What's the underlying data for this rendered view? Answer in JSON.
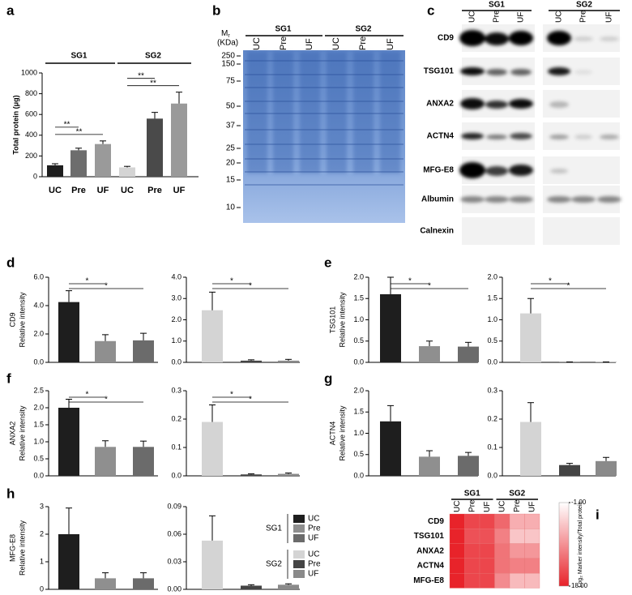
{
  "chart_data": [
    {
      "type": "bar",
      "panel": "a",
      "ylabel": [
        "Total protein (μg)"
      ],
      "ylim": [
        0,
        1000
      ],
      "yticks": [
        0,
        200,
        400,
        600,
        800,
        1000
      ],
      "groups": [
        {
          "name": "SG1",
          "categories": [
            "UC",
            "Pre",
            "UF"
          ],
          "values": [
            110,
            255,
            315
          ],
          "errors": [
            15,
            20,
            30
          ],
          "colors": [
            "#1e1e1e",
            "#6d6d6d",
            "#9a9a9a"
          ],
          "significance": [
            "**",
            "**"
          ]
        },
        {
          "name": "SG2",
          "categories": [
            "UC",
            "Pre",
            "UF"
          ],
          "values": [
            90,
            560,
            705
          ],
          "errors": [
            10,
            60,
            110
          ],
          "colors": [
            "#d4d4d4",
            "#4a4a4a",
            "#9a9a9a"
          ],
          "significance": [
            "**",
            "**"
          ]
        }
      ]
    },
    {
      "type": "bar",
      "panel": "d",
      "ylabel": [
        "CD9",
        "Relative intensity"
      ],
      "categories": [
        null,
        null,
        null
      ],
      "values": [
        4.25,
        1.5,
        1.55
      ],
      "errors": [
        0.8,
        0.45,
        0.5
      ],
      "colors": [
        "#1e1e1e",
        "#8f8f8f",
        "#6b6b6b"
      ],
      "ylim": [
        0,
        6
      ],
      "yticks": [
        {
          "value": 0,
          "label": "0.0"
        },
        {
          "value": 2,
          "label": "2.0"
        },
        {
          "value": 4,
          "label": "4.0"
        },
        {
          "value": 6,
          "label": "6.0"
        }
      ],
      "significance": [
        "*",
        "*"
      ]
    },
    {
      "type": "bar",
      "categories": [
        null,
        null,
        null
      ],
      "values": [
        2.45,
        0.08,
        0.08
      ],
      "errors": [
        0.85,
        0.04,
        0.06
      ],
      "colors": [
        "#d4d4d4",
        "#444444",
        "#8a8a8a"
      ],
      "ylim": [
        0,
        4
      ],
      "yticks": [
        {
          "value": 0,
          "label": "0.0"
        },
        {
          "value": 1,
          "label": "1.0"
        },
        {
          "value": 2,
          "label": "2.0"
        },
        {
          "value": 3,
          "label": "3.0"
        },
        {
          "value": 4,
          "label": "4.0"
        }
      ],
      "significance": [
        "*",
        "*"
      ]
    },
    {
      "type": "bar",
      "panel": "e",
      "ylabel": [
        "TSG101",
        "Relative intensity"
      ],
      "categories": [
        null,
        null,
        null
      ],
      "values": [
        1.6,
        0.38,
        0.37
      ],
      "errors": [
        0.4,
        0.12,
        0.1
      ],
      "colors": [
        "#1e1e1e",
        "#8f8f8f",
        "#6b6b6b"
      ],
      "ylim": [
        0,
        2
      ],
      "yticks": [
        {
          "value": 0,
          "label": "0.0"
        },
        0.5,
        {
          "value": 1,
          "label": "1.0"
        },
        1.5,
        {
          "value": 2,
          "label": "2.0"
        }
      ],
      "significance": [
        "*",
        "*"
      ]
    },
    {
      "type": "bar",
      "categories": [
        null,
        null,
        null
      ],
      "values": [
        1.15,
        0.01,
        0.01
      ],
      "errors": [
        0.35,
        0,
        0
      ],
      "colors": [
        "#d4d4d4",
        "#444444",
        "#8a8a8a"
      ],
      "ylim": [
        0,
        2
      ],
      "yticks": [
        {
          "value": 0,
          "label": "0.0"
        },
        0.5,
        {
          "value": 1,
          "label": "1.0"
        },
        1.5,
        {
          "value": 2,
          "label": "2.0"
        }
      ],
      "significance": [
        "*",
        "*"
      ]
    },
    {
      "type": "bar",
      "panel": "f",
      "ylabel": [
        "ANXA2",
        "Relative intensity"
      ],
      "categories": [
        null,
        null,
        null
      ],
      "values": [
        2.0,
        0.85,
        0.85
      ],
      "errors": [
        0.25,
        0.18,
        0.17
      ],
      "colors": [
        "#1e1e1e",
        "#8f8f8f",
        "#6b6b6b"
      ],
      "ylim": [
        0,
        2.5
      ],
      "yticks": [
        {
          "value": 0,
          "label": "0.0"
        },
        0.5,
        {
          "value": 1,
          "label": "1.0"
        },
        1.5,
        {
          "value": 2,
          "label": "2.0"
        },
        2.5
      ],
      "significance": [
        "*",
        "*"
      ]
    },
    {
      "type": "bar",
      "categories": [
        null,
        null,
        null
      ],
      "values": [
        0.19,
        0.005,
        0.007
      ],
      "errors": [
        0.06,
        0.002,
        0.003
      ],
      "colors": [
        "#d4d4d4",
        "#444444",
        "#8a8a8a"
      ],
      "ylim": [
        0,
        0.3
      ],
      "yticks": [
        {
          "value": 0,
          "label": "0.0"
        },
        0.1,
        0.2,
        0.3
      ],
      "significance": [
        "*",
        "*"
      ]
    },
    {
      "type": "bar",
      "panel": "g",
      "ylabel": [
        "ACTN4",
        "Relative intensity"
      ],
      "categories": [
        null,
        null,
        null
      ],
      "values": [
        1.28,
        0.45,
        0.47
      ],
      "errors": [
        0.37,
        0.14,
        0.08
      ],
      "colors": [
        "#1e1e1e",
        "#8f8f8f",
        "#6b6b6b"
      ],
      "ylim": [
        0,
        2
      ],
      "yticks": [
        {
          "value": 0,
          "label": "0.0"
        },
        0.5,
        {
          "value": 1,
          "label": "1.0"
        },
        1.5,
        {
          "value": 2,
          "label": "2.0"
        }
      ]
    },
    {
      "type": "bar",
      "categories": [
        null,
        null,
        null
      ],
      "values": [
        0.19,
        0.038,
        0.052
      ],
      "errors": [
        0.068,
        0.006,
        0.013
      ],
      "colors": [
        "#d4d4d4",
        "#444444",
        "#8a8a8a"
      ],
      "ylim": [
        0,
        0.3
      ],
      "yticks": [
        {
          "value": 0,
          "label": "0.0"
        },
        0.1,
        0.2,
        0.3
      ]
    },
    {
      "type": "bar",
      "panel": "h",
      "ylabel": [
        "MFG-E8",
        "Relative intensity"
      ],
      "categories": [
        null,
        null,
        null
      ],
      "values": [
        2.0,
        0.4,
        0.4
      ],
      "errors": [
        0.95,
        0.2,
        0.2
      ],
      "colors": [
        "#1e1e1e",
        "#8f8f8f",
        "#6b6b6b"
      ],
      "ylim": [
        0,
        3
      ],
      "yticks": [
        0,
        1,
        2,
        3
      ]
    },
    {
      "type": "bar",
      "categories": [
        null,
        null,
        null
      ],
      "values": [
        0.053,
        0.004,
        0.005
      ],
      "errors": [
        0.027,
        0.001,
        0.001
      ],
      "colors": [
        "#d4d4d4",
        "#444444",
        "#8a8a8a"
      ],
      "ylim": [
        0,
        0.09
      ],
      "yticks": [
        {
          "value": 0,
          "label": "0.00"
        },
        0.03,
        0.06,
        {
          "value": 0.09,
          "label": "0.09"
        }
      ]
    },
    {
      "type": "heatmap",
      "panel": "i",
      "groups": [
        "SG1",
        "SG2"
      ],
      "columns": [
        "UC",
        "Pre",
        "UF",
        "UC",
        "Pre",
        "UF"
      ],
      "rows": [
        "CD9",
        "TSG101",
        "ANXA2",
        "ACTN4",
        "MFG-E8"
      ],
      "values": [
        [
          18,
          15,
          15,
          12,
          6,
          6
        ],
        [
          18,
          14,
          14,
          10,
          4,
          4
        ],
        [
          18,
          15,
          15,
          11,
          8,
          8
        ],
        [
          18,
          15,
          15,
          11,
          10,
          10
        ],
        [
          18,
          15,
          15,
          9,
          5,
          5
        ]
      ],
      "clim": [
        -1,
        18
      ],
      "cticks": [
        {
          "value": -1,
          "label": "-1.00"
        },
        {
          "value": 18,
          "label": "18.00"
        }
      ],
      "colorbar_label": "Log₂ Marker intensity/Total protein"
    }
  ],
  "gel": {
    "panel": "b",
    "mr": {
      "symbol": "M",
      "subscript": "r"
    },
    "unit": "(KDa)",
    "groups": [
      "SG1",
      "SG2"
    ],
    "lanes": [
      "UC",
      "Pre",
      "UF",
      "UC",
      "Pre",
      "UF"
    ],
    "markers": [
      250,
      150,
      75,
      50,
      37,
      25,
      20,
      15,
      10
    ]
  },
  "blot": {
    "panel": "c",
    "groups": [
      "SG1",
      "SG2"
    ],
    "lanes": [
      "UC",
      "Pre",
      "UF",
      "UC",
      "Pre",
      "UF"
    ],
    "proteins": [
      "CD9",
      "TSG101",
      "ANXA2",
      "ACTN4",
      "MFG-E8",
      "Albumin",
      "Calnexin"
    ]
  },
  "legend": [
    {
      "group": "SG1",
      "items": [
        {
          "name": "UC",
          "color": "#1e1e1e"
        },
        {
          "name": "Pre",
          "color": "#8f8f8f"
        },
        {
          "name": "UF",
          "color": "#6b6b6b"
        }
      ]
    },
    {
      "group": "SG2",
      "items": [
        {
          "name": "UC",
          "color": "#d4d4d4"
        },
        {
          "name": "Pre",
          "color": "#444444"
        },
        {
          "name": "UF",
          "color": "#8a8a8a"
        }
      ]
    }
  ]
}
